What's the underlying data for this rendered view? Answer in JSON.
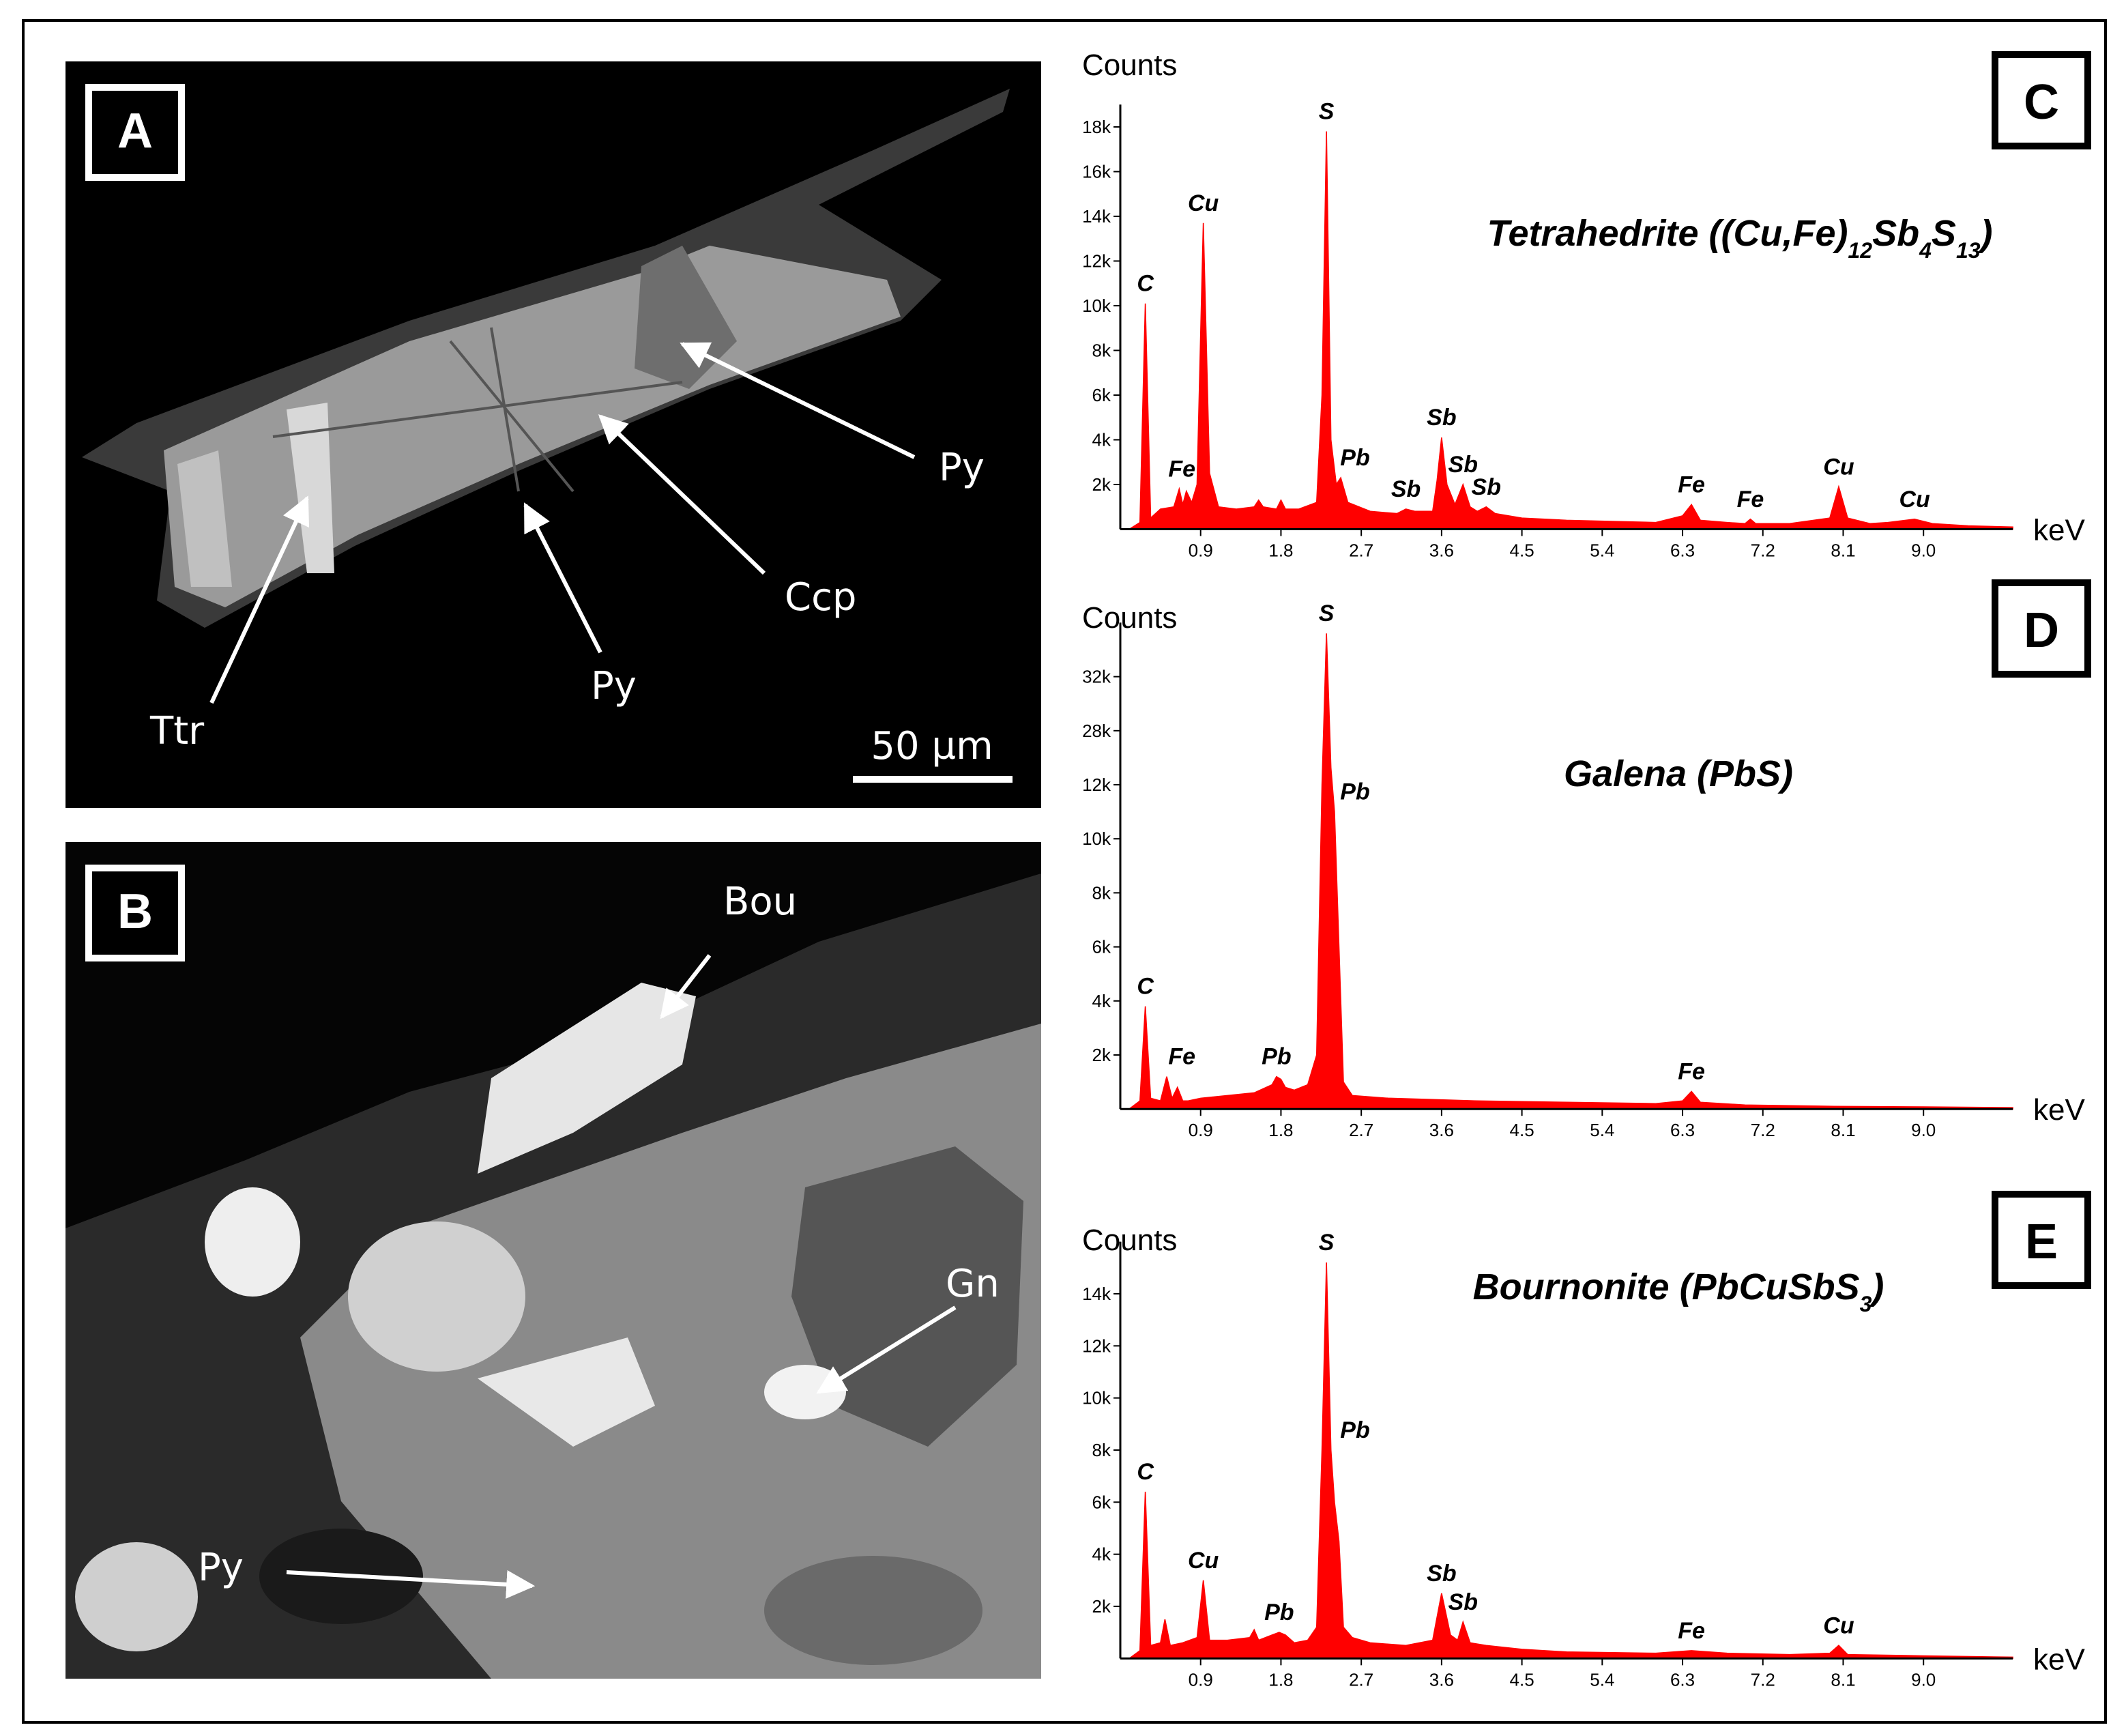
{
  "panels": [
    {
      "label": "A",
      "annotations": [
        "Py",
        "Ccp",
        "Py",
        "Ttr"
      ],
      "scale_bar": "50 µm"
    },
    {
      "label": "B",
      "annotations": [
        "Bou",
        "Gn",
        "Py"
      ]
    }
  ],
  "chart_data": [
    {
      "type": "area",
      "panel": "C",
      "title": [
        "Tetrahedrite ((Cu,Fe)",
        "12",
        "Sb",
        "4",
        "S",
        "13",
        ")"
      ],
      "ylabel": "Counts",
      "xlabel": "keV",
      "color": "#ff0000",
      "x": [
        0.1,
        0.22,
        0.28,
        0.34,
        0.45,
        0.6,
        0.66,
        0.7,
        0.74,
        0.8,
        0.86,
        0.93,
        1.0,
        1.1,
        1.3,
        1.5,
        1.55,
        1.6,
        1.75,
        1.8,
        1.85,
        2.0,
        2.2,
        2.26,
        2.31,
        2.36,
        2.42,
        2.47,
        2.55,
        2.8,
        3.1,
        3.2,
        3.3,
        3.5,
        3.55,
        3.6,
        3.66,
        3.75,
        3.84,
        3.92,
        4.0,
        4.1,
        4.2,
        4.5,
        5.0,
        5.5,
        6.0,
        6.3,
        6.4,
        6.5,
        6.8,
        7.0,
        7.06,
        7.12,
        7.5,
        7.95,
        8.05,
        8.15,
        8.4,
        8.6,
        8.9,
        9.1,
        9.5,
        10.0
      ],
      "values": [
        0,
        300,
        10100,
        500,
        900,
        1000,
        1800,
        1100,
        1700,
        1200,
        2000,
        13700,
        2500,
        1000,
        900,
        1000,
        1300,
        1000,
        900,
        1300,
        900,
        900,
        1200,
        6000,
        17800,
        4000,
        2000,
        2300,
        1200,
        800,
        700,
        900,
        800,
        800,
        2200,
        4100,
        2000,
        1100,
        2000,
        1000,
        800,
        1000,
        700,
        500,
        400,
        350,
        300,
        600,
        1100,
        400,
        300,
        250,
        450,
        250,
        250,
        500,
        1900,
        500,
        250,
        300,
        450,
        250,
        150,
        100
      ],
      "xlim": [
        0,
        10
      ],
      "xticks": [
        0.9,
        1.8,
        2.7,
        3.6,
        4.5,
        5.4,
        6.3,
        7.2,
        8.1,
        {
          "value": 9,
          "label": "9.0"
        }
      ],
      "ylim": [
        0,
        19000
      ],
      "yticks": [
        {
          "value": 2000,
          "label": "2k"
        },
        {
          "value": 4000,
          "label": "4k"
        },
        {
          "value": 6000,
          "label": "6k"
        },
        {
          "value": 8000,
          "label": "8k"
        },
        {
          "value": 10000,
          "label": "10k"
        },
        {
          "value": 12000,
          "label": "12k"
        },
        {
          "value": 14000,
          "label": "14k"
        },
        {
          "value": 16000,
          "label": "16k"
        },
        {
          "value": 18000,
          "label": "18k"
        }
      ],
      "annotations": [
        {
          "text": "C",
          "x": 0.28,
          "y": 10100
        },
        {
          "text": "Cu",
          "x": 0.93,
          "y": 13700
        },
        {
          "text": "S",
          "x": 2.31,
          "y": 17800
        },
        {
          "text": "Fe",
          "x": 0.69,
          "y": 1800
        },
        {
          "text": "Pb",
          "x": 2.63,
          "y": 2300
        },
        {
          "text": "Sb",
          "x": 3.2,
          "y": 900
        },
        {
          "text": "Sb",
          "x": 3.6,
          "y": 4100
        },
        {
          "text": "Sb",
          "x": 3.84,
          "y": 2000
        },
        {
          "text": "Sb",
          "x": 4.1,
          "y": 1000
        },
        {
          "text": "Fe",
          "x": 6.4,
          "y": 1100
        },
        {
          "text": "Fe",
          "x": 7.06,
          "y": 450
        },
        {
          "text": "Cu",
          "x": 8.05,
          "y": 1900
        },
        {
          "text": "Cu",
          "x": 8.9,
          "y": 450
        }
      ]
    },
    {
      "type": "area",
      "panel": "D",
      "title": [
        "Galena (PbS)"
      ],
      "ylabel": "Counts",
      "xlabel": "keV",
      "color": "#ff0000",
      "x": [
        0.1,
        0.22,
        0.28,
        0.34,
        0.45,
        0.52,
        0.58,
        0.64,
        0.7,
        0.76,
        0.9,
        1.2,
        1.5,
        1.7,
        1.75,
        1.8,
        1.85,
        1.95,
        2.1,
        2.2,
        2.26,
        2.31,
        2.36,
        2.4,
        2.45,
        2.5,
        2.6,
        3.0,
        3.5,
        4.0,
        5.0,
        6.0,
        6.3,
        6.4,
        6.5,
        7.0,
        8.0,
        9.0,
        10.0
      ],
      "values": [
        0,
        300,
        3800,
        400,
        300,
        1200,
        400,
        800,
        300,
        300,
        400,
        500,
        600,
        900,
        1200,
        1100,
        800,
        700,
        900,
        2000,
        12000,
        35200,
        17000,
        11000,
        6000,
        1000,
        500,
        400,
        350,
        300,
        250,
        200,
        300,
        650,
        250,
        150,
        100,
        80,
        50
      ],
      "xlim": [
        0,
        10
      ],
      "xticks": [
        0.9,
        1.8,
        2.7,
        3.6,
        4.5,
        5.4,
        6.3,
        7.2,
        8.1,
        {
          "value": 9,
          "label": "9.0"
        }
      ],
      "ylim": [
        0,
        36000
      ],
      "yticks": [
        {
          "value": 2000,
          "label": "2k"
        },
        {
          "value": 4000,
          "label": "4k"
        },
        {
          "value": 6000,
          "label": "6k"
        },
        {
          "value": 8000,
          "label": "8k"
        },
        {
          "value": 10000,
          "label": "10k"
        },
        {
          "value": 12000,
          "label": "12k"
        },
        {
          "value": 28000,
          "label": "28k"
        },
        {
          "value": 32000,
          "label": "32k"
        }
      ],
      "annotations": [
        {
          "text": "C",
          "x": 0.28,
          "y": 3800
        },
        {
          "text": "Fe",
          "x": 0.69,
          "y": 1200
        },
        {
          "text": "Pb",
          "x": 1.75,
          "y": 1200
        },
        {
          "text": "S",
          "x": 2.31,
          "y": 35200
        },
        {
          "text": "Pb",
          "x": 2.63,
          "y": 11000
        },
        {
          "text": "Fe",
          "x": 6.4,
          "y": 650
        }
      ]
    },
    {
      "type": "area",
      "panel": "E",
      "title": [
        "Bournonite (PbCuSbS",
        "3",
        ")"
      ],
      "ylabel": "Counts",
      "xlabel": "keV",
      "color": "#ff0000",
      "x": [
        0.1,
        0.22,
        0.28,
        0.34,
        0.45,
        0.5,
        0.56,
        0.7,
        0.86,
        0.93,
        1.0,
        1.2,
        1.45,
        1.5,
        1.55,
        1.7,
        1.78,
        1.85,
        1.95,
        2.1,
        2.2,
        2.26,
        2.31,
        2.36,
        2.4,
        2.45,
        2.5,
        2.6,
        2.8,
        3.2,
        3.5,
        3.6,
        3.7,
        3.78,
        3.84,
        3.92,
        4.1,
        4.5,
        5.0,
        6.0,
        6.4,
        6.8,
        7.5,
        7.95,
        8.05,
        8.15,
        9.0,
        10.0
      ],
      "values": [
        0,
        300,
        6400,
        500,
        600,
        1500,
        500,
        600,
        800,
        3000,
        700,
        700,
        800,
        1100,
        700,
        900,
        1000,
        900,
        600,
        700,
        1200,
        8000,
        15200,
        8000,
        6000,
        4500,
        1200,
        800,
        600,
        500,
        700,
        2500,
        900,
        700,
        1400,
        600,
        500,
        350,
        250,
        200,
        300,
        200,
        150,
        200,
        500,
        150,
        100,
        50
      ],
      "xlim": [
        0,
        10
      ],
      "xticks": [
        0.9,
        1.8,
        2.7,
        3.6,
        4.5,
        5.4,
        6.3,
        7.2,
        8.1,
        {
          "value": 9,
          "label": "9.0"
        }
      ],
      "ylim": [
        0,
        16000
      ],
      "yticks": [
        {
          "value": 2000,
          "label": "2k"
        },
        {
          "value": 4000,
          "label": "4k"
        },
        {
          "value": 6000,
          "label": "6k"
        },
        {
          "value": 8000,
          "label": "8k"
        },
        {
          "value": 10000,
          "label": "10k"
        },
        {
          "value": 12000,
          "label": "12k"
        },
        {
          "value": 14000,
          "label": "14k"
        }
      ],
      "annotations": [
        {
          "text": "C",
          "x": 0.28,
          "y": 6400
        },
        {
          "text": "Cu",
          "x": 0.93,
          "y": 3000
        },
        {
          "text": "Pb",
          "x": 1.78,
          "y": 1000
        },
        {
          "text": "S",
          "x": 2.31,
          "y": 15200
        },
        {
          "text": "Pb",
          "x": 2.63,
          "y": 8000
        },
        {
          "text": "Sb",
          "x": 3.6,
          "y": 2500
        },
        {
          "text": "Sb",
          "x": 3.84,
          "y": 1400
        },
        {
          "text": "Fe",
          "x": 6.4,
          "y": 300
        },
        {
          "text": "Cu",
          "x": 8.05,
          "y": 500
        }
      ]
    }
  ]
}
